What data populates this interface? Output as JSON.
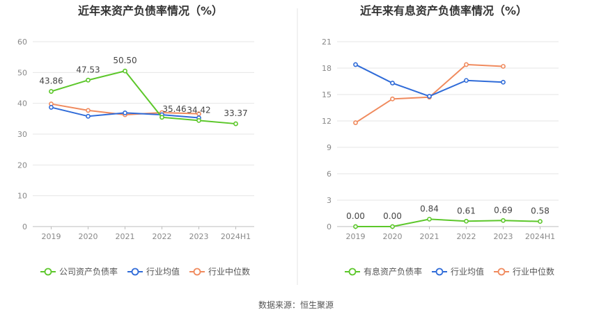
{
  "source_label": "数据来源：恒生聚源",
  "colors": {
    "company": "#5cc72a",
    "avg": "#2f6bd8",
    "median": "#f08a5d",
    "grid": "#e6e6e6",
    "axis": "#bdbdbd",
    "divider": "#e4e4e4"
  },
  "chart_data": [
    {
      "type": "line",
      "title": "近年来资产负债率情况（%）",
      "categories": [
        "2019",
        "2020",
        "2021",
        "2022",
        "2023",
        "2024H1"
      ],
      "ylim": [
        0,
        60
      ],
      "yticks": [
        0,
        10,
        20,
        30,
        40,
        50,
        60
      ],
      "grid": true,
      "legend_position": "bottom",
      "series": [
        {
          "name": "公司资产负债率",
          "color_key": "company",
          "values": [
            43.86,
            47.53,
            50.5,
            35.46,
            34.42,
            33.37
          ],
          "labels": [
            "43.86",
            "47.53",
            "50.50",
            "35.46",
            "34.42",
            "33.37"
          ]
        },
        {
          "name": "行业均值",
          "color_key": "avg",
          "values": [
            38.7,
            35.8,
            36.9,
            36.3,
            35.3,
            null
          ]
        },
        {
          "name": "行业中位数",
          "color_key": "median",
          "values": [
            39.8,
            37.7,
            36.3,
            37.0,
            36.6,
            null
          ]
        }
      ]
    },
    {
      "type": "line",
      "title": "近年来有息资产负债率情况（%）",
      "categories": [
        "2019",
        "2020",
        "2021",
        "2022",
        "2023",
        "2024H1"
      ],
      "ylim": [
        0,
        21
      ],
      "yticks": [
        0,
        3,
        6,
        9,
        12,
        15,
        18,
        21
      ],
      "grid": true,
      "legend_position": "bottom",
      "series": [
        {
          "name": "有息资产负债率",
          "color_key": "company",
          "values": [
            0.0,
            0.0,
            0.84,
            0.61,
            0.69,
            0.58
          ],
          "labels": [
            "0.00",
            "0.00",
            "0.84",
            "0.61",
            "0.69",
            "0.58"
          ]
        },
        {
          "name": "行业均值",
          "color_key": "avg",
          "values": [
            18.4,
            16.3,
            14.8,
            16.6,
            16.4,
            null
          ]
        },
        {
          "name": "行业中位数",
          "color_key": "median",
          "values": [
            11.8,
            14.5,
            14.7,
            18.4,
            18.2,
            null
          ]
        }
      ]
    }
  ]
}
